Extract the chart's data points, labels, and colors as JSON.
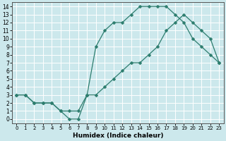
{
  "bg_color": "#cce8ec",
  "line_color": "#2d7d6e",
  "grid_color": "#ffffff",
  "xlabel": "Humidex (Indice chaleur)",
  "upper_x": [
    0,
    1,
    2,
    3,
    4,
    5,
    6,
    7,
    8,
    9,
    10,
    11,
    12,
    13,
    14,
    15,
    16,
    17,
    18,
    19,
    20,
    21,
    22,
    23
  ],
  "upper_y": [
    3,
    3,
    2,
    2,
    2,
    1,
    0,
    0,
    3,
    9,
    11,
    12,
    12,
    13,
    14,
    14,
    14,
    14,
    13,
    12,
    10,
    9,
    8,
    7
  ],
  "lower_x": [
    0,
    1,
    2,
    3,
    4,
    5,
    6,
    7,
    8,
    9,
    10,
    11,
    12,
    13,
    14,
    15,
    16,
    17,
    18,
    19,
    20,
    21,
    22,
    23
  ],
  "lower_y": [
    3,
    3,
    2,
    2,
    2,
    1,
    1,
    1,
    3,
    3,
    4,
    5,
    6,
    7,
    7,
    8,
    9,
    11,
    12,
    13,
    12,
    11,
    10,
    7
  ]
}
